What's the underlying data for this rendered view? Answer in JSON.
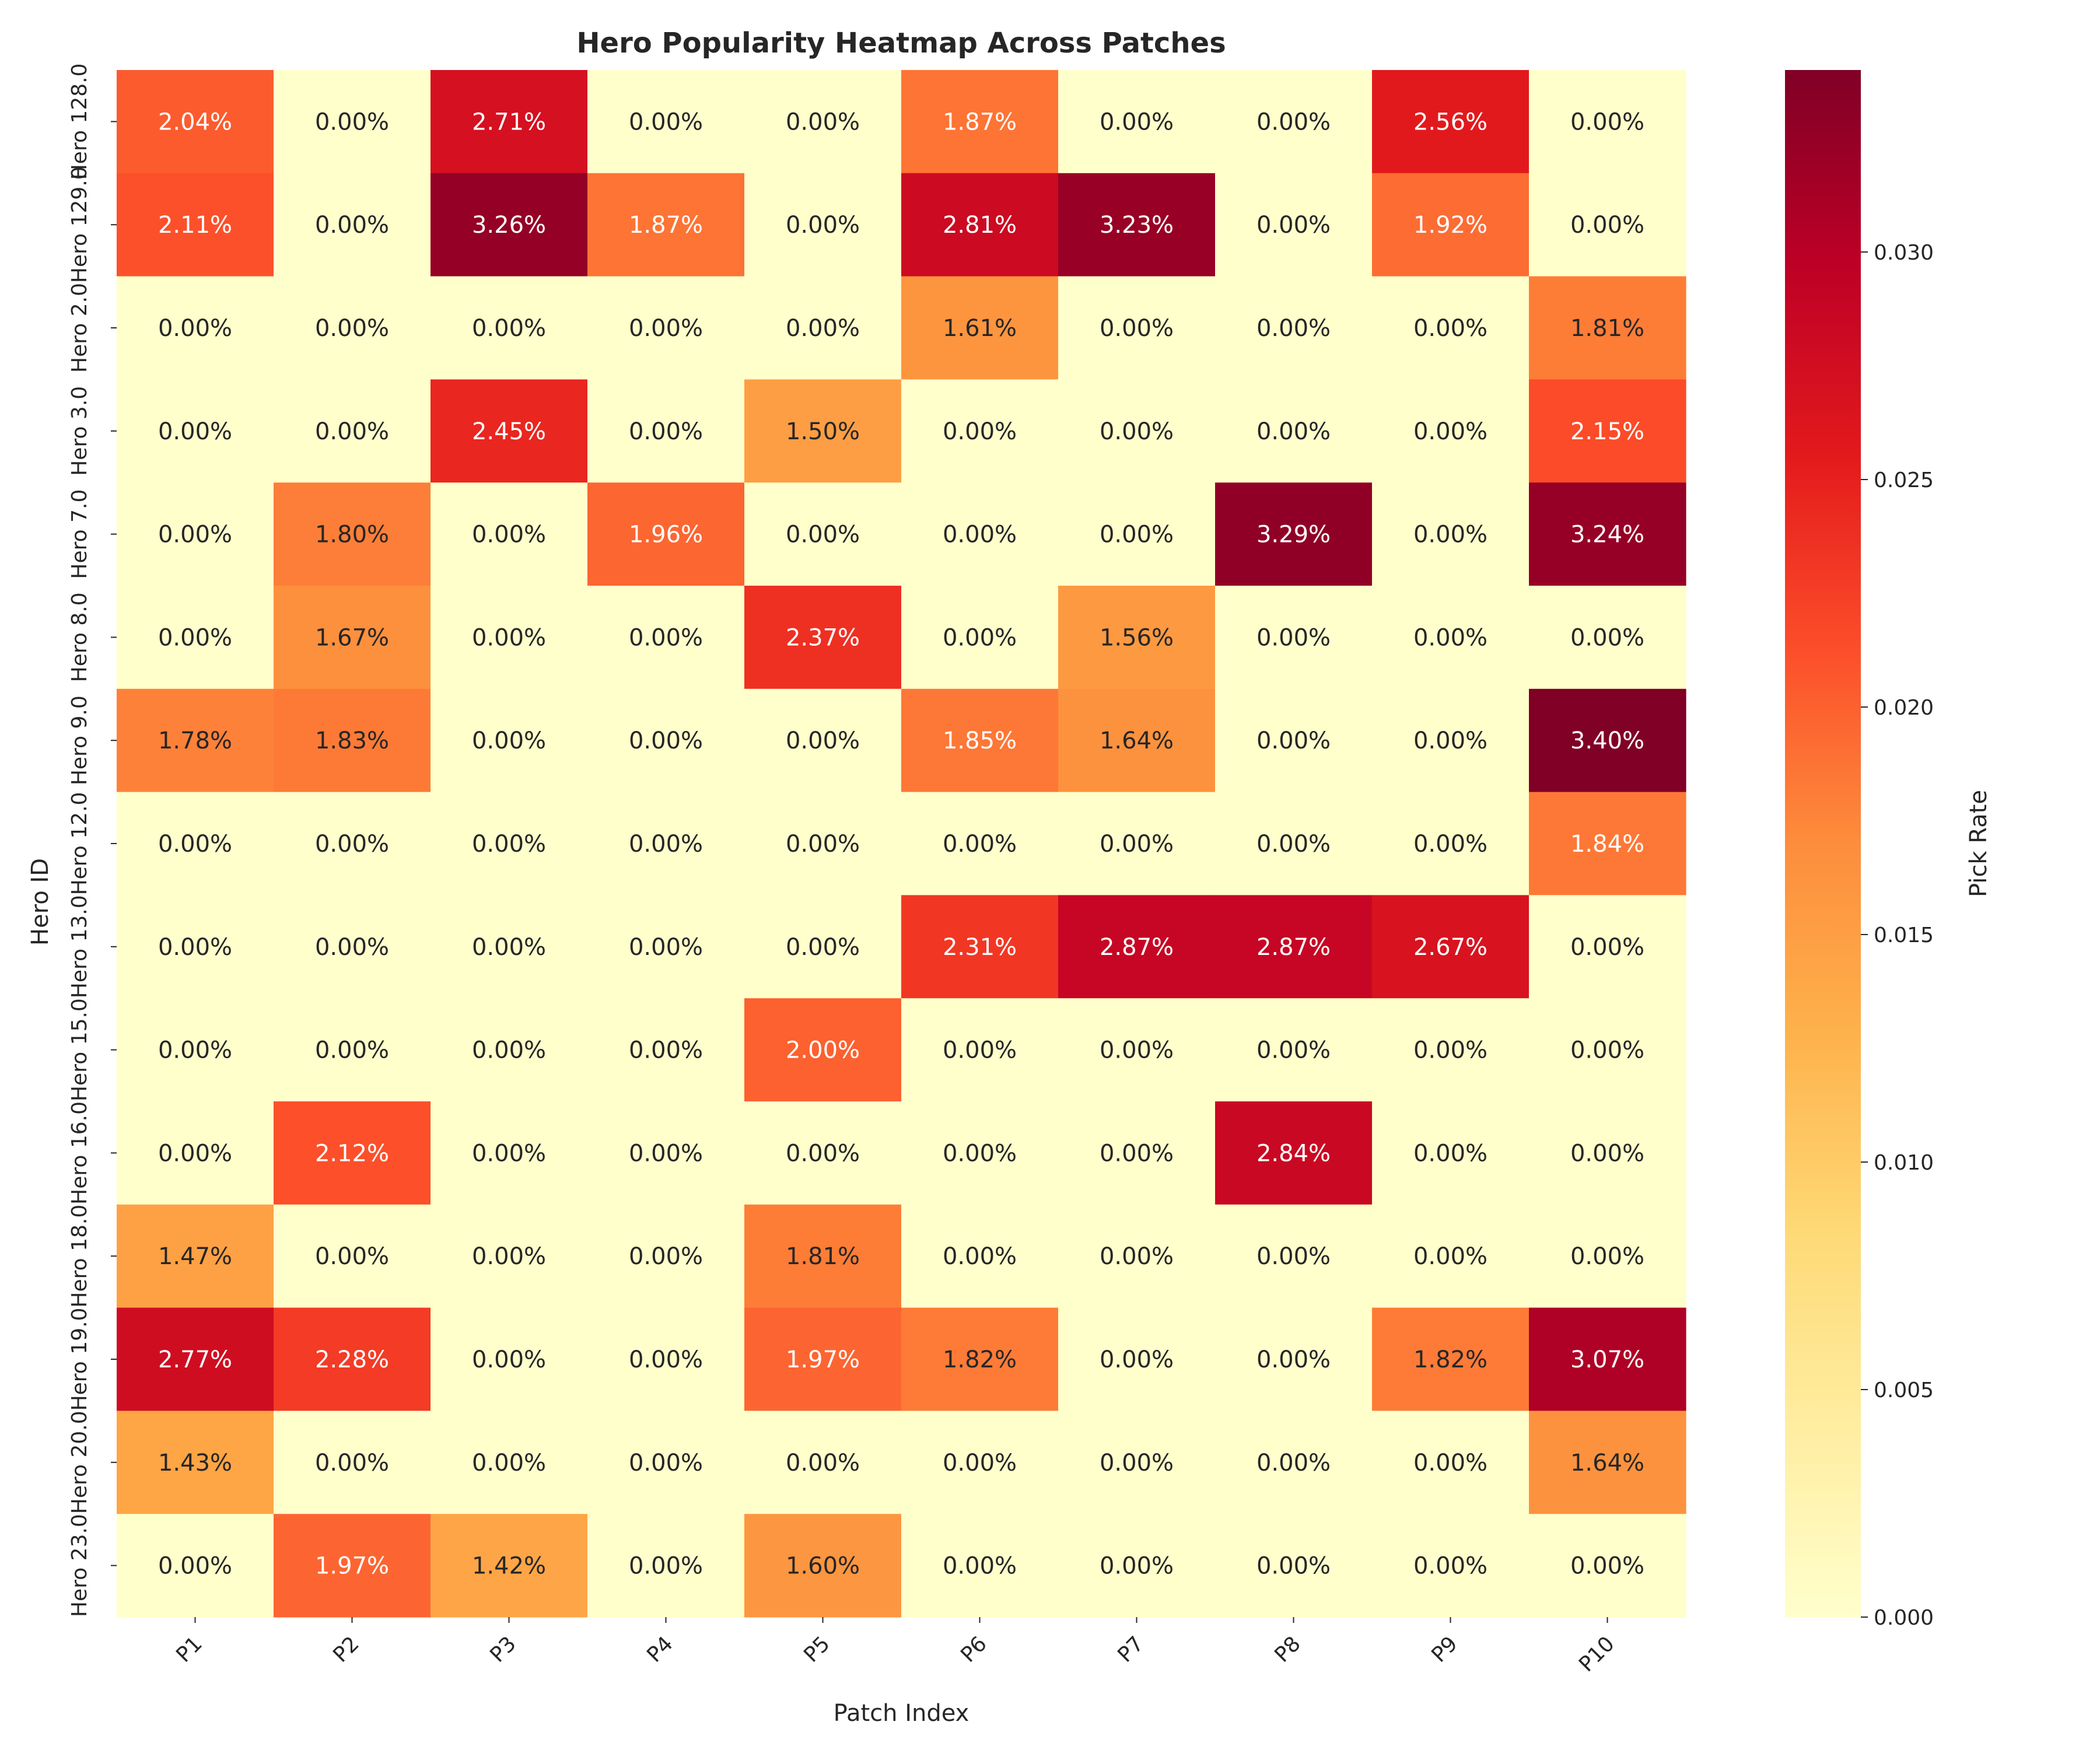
{
  "chart_data": {
    "type": "heatmap",
    "title": "Hero Popularity Heatmap Across Patches",
    "xlabel": "Patch Index",
    "ylabel": "Hero ID",
    "colorbar_label": "Pick Rate",
    "colormap": "YlOrRd",
    "colormap_stops": [
      "#ffffcc",
      "#ffeda0",
      "#fed976",
      "#feb24c",
      "#fd8d3c",
      "#fc4e2a",
      "#e31a1c",
      "#bd0026",
      "#800026"
    ],
    "vmin": 0.0,
    "vmax": 0.034,
    "colorbar_ticks": [
      "0.000",
      "0.005",
      "0.010",
      "0.015",
      "0.020",
      "0.025",
      "0.030"
    ],
    "x_categories": [
      "P1",
      "P2",
      "P3",
      "P4",
      "P5",
      "P6",
      "P7",
      "P8",
      "P9",
      "P10"
    ],
    "y_categories": [
      "Hero 128.0",
      "Hero 129.0",
      "Hero 2.0",
      "Hero 3.0",
      "Hero 7.0",
      "Hero 8.0",
      "Hero 9.0",
      "Hero 12.0",
      "Hero 13.0",
      "Hero 15.0",
      "Hero 16.0",
      "Hero 18.0",
      "Hero 19.0",
      "Hero 20.0",
      "Hero 23.0"
    ],
    "values": [
      [
        2.04,
        0.0,
        2.71,
        0.0,
        0.0,
        1.87,
        0.0,
        0.0,
        2.56,
        0.0
      ],
      [
        2.11,
        0.0,
        3.26,
        1.87,
        0.0,
        2.81,
        3.23,
        0.0,
        1.92,
        0.0
      ],
      [
        0.0,
        0.0,
        0.0,
        0.0,
        0.0,
        1.61,
        0.0,
        0.0,
        0.0,
        1.81
      ],
      [
        0.0,
        0.0,
        2.45,
        0.0,
        1.5,
        0.0,
        0.0,
        0.0,
        0.0,
        2.15
      ],
      [
        0.0,
        1.8,
        0.0,
        1.96,
        0.0,
        0.0,
        0.0,
        3.29,
        0.0,
        3.24
      ],
      [
        0.0,
        1.67,
        0.0,
        0.0,
        2.37,
        0.0,
        1.56,
        0.0,
        0.0,
        0.0
      ],
      [
        1.78,
        1.83,
        0.0,
        0.0,
        0.0,
        1.85,
        1.64,
        0.0,
        0.0,
        3.4
      ],
      [
        0.0,
        0.0,
        0.0,
        0.0,
        0.0,
        0.0,
        0.0,
        0.0,
        0.0,
        1.84
      ],
      [
        0.0,
        0.0,
        0.0,
        0.0,
        0.0,
        2.31,
        2.87,
        2.87,
        2.67,
        0.0
      ],
      [
        0.0,
        0.0,
        0.0,
        0.0,
        2.0,
        0.0,
        0.0,
        0.0,
        0.0,
        0.0
      ],
      [
        0.0,
        2.12,
        0.0,
        0.0,
        0.0,
        0.0,
        0.0,
        2.84,
        0.0,
        0.0
      ],
      [
        1.47,
        0.0,
        0.0,
        0.0,
        1.81,
        0.0,
        0.0,
        0.0,
        0.0,
        0.0
      ],
      [
        2.77,
        2.28,
        0.0,
        0.0,
        1.97,
        1.82,
        0.0,
        0.0,
        1.82,
        3.07
      ],
      [
        1.43,
        0.0,
        0.0,
        0.0,
        0.0,
        0.0,
        0.0,
        0.0,
        0.0,
        1.64
      ],
      [
        0.0,
        1.97,
        1.42,
        0.0,
        1.6,
        0.0,
        0.0,
        0.0,
        0.0,
        0.0
      ]
    ],
    "value_unit": "%",
    "grid": false,
    "legend": "none"
  }
}
